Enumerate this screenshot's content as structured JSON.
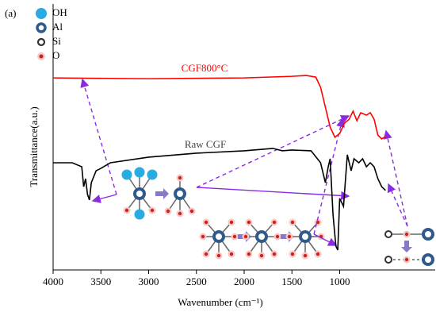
{
  "chart_data": {
    "type": "line",
    "panel_label": "(a)",
    "x_label": "Wavenumber (cm⁻¹)",
    "y_label": "Transmittance(a.u.)",
    "legend_symbols": [
      {
        "label": "OH",
        "color": "#29abe2"
      },
      {
        "label": "Al",
        "color": "#2e5a8c"
      },
      {
        "label": "Si",
        "color": "#333333"
      },
      {
        "label": "O",
        "color": "#cc2222"
      }
    ],
    "xlim": [
      4000,
      0
    ],
    "xticks": [
      4000,
      3500,
      3000,
      2500,
      2000,
      1500,
      1000
    ],
    "ylim": [
      0,
      100
    ],
    "series": [
      {
        "name": "CGF800°C",
        "color": "#ff0000",
        "x": [
          4000,
          3000,
          2000,
          1500,
          1350,
          1250,
          1200,
          1150,
          1100,
          1050,
          1000,
          950,
          900,
          860,
          820,
          780,
          720,
          680,
          640,
          600,
          560,
          520
        ],
        "values": [
          72.2,
          71.9,
          72.2,
          72.8,
          73.1,
          72.5,
          68.7,
          61.2,
          53.7,
          49.9,
          51.3,
          55.2,
          56.7,
          59.7,
          56.1,
          59.1,
          58.2,
          59.1,
          56.7,
          50.7,
          49.3,
          50.1
        ]
      },
      {
        "name": "Raw CGF",
        "color": "#000000",
        "x": [
          4000,
          3800,
          3700,
          3680,
          3660,
          3640,
          3620,
          3600,
          3550,
          3500,
          3400,
          3000,
          2500,
          2000,
          1700,
          1600,
          1500,
          1300,
          1200,
          1150,
          1120,
          1100,
          1070,
          1040,
          1020,
          1000,
          960,
          920,
          880,
          850,
          800,
          760,
          720,
          680,
          640,
          600,
          560,
          520
        ],
        "values": [
          40.3,
          40.3,
          38.8,
          31.3,
          34.3,
          28.4,
          26.3,
          32.8,
          37.3,
          38.2,
          40.3,
          42.4,
          43.9,
          44.8,
          45.7,
          44.8,
          45.1,
          44.8,
          40.3,
          32.8,
          38.8,
          41.8,
          20.9,
          9.0,
          7.5,
          26.9,
          23.9,
          43.3,
          37.3,
          41.8,
          40.3,
          41.8,
          38.8,
          40.3,
          38.8,
          34.3,
          31.3,
          29.9
        ]
      }
    ]
  }
}
